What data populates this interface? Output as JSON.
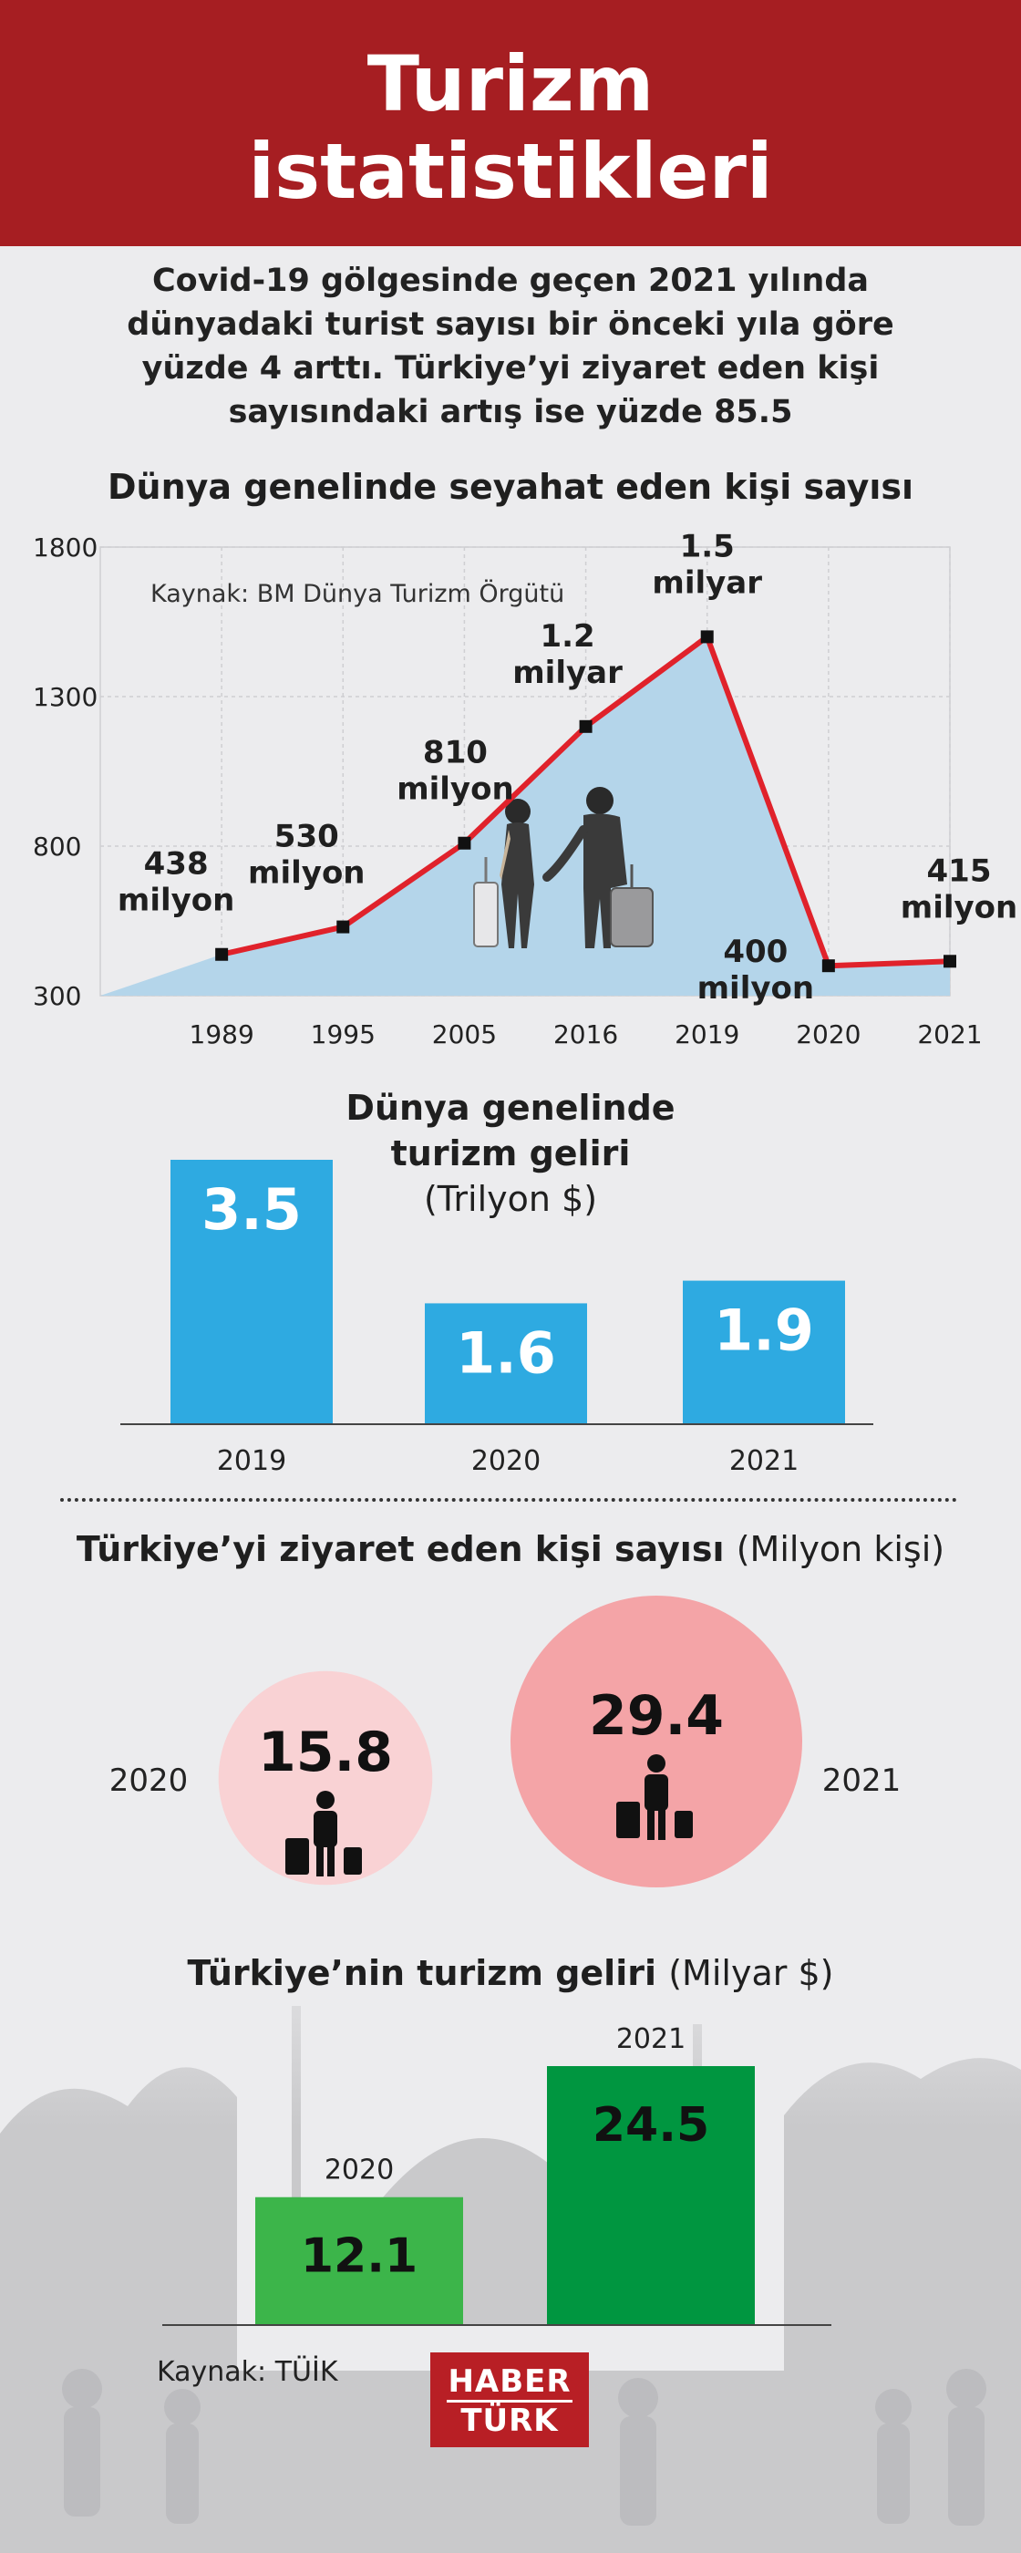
{
  "header": {
    "title_line1": "Turizm",
    "title_line2": "istatistikleri"
  },
  "intro": {
    "lines": [
      "Covid-19 gölgesinde geçen 2021 yılında",
      "dünyadaki turist sayısı bir önceki yıla göre",
      "yüzde 4 arttı. Türkiye’yi ziyaret eden kişi",
      "sayısındaki artış ise yüzde 85.5"
    ]
  },
  "colors": {
    "header_red": "#a61e22",
    "line_red": "#e0222b",
    "area_blue": "#b4d5ea",
    "bar_blue": "#2eaae1",
    "circle_light": "#f9d2d4",
    "circle_dark": "#f4a4a7",
    "bar_green_light": "#3cb54a",
    "bar_green_dark": "#009640",
    "logo_red": "#b81f25"
  },
  "chart_data": [
    {
      "type": "area",
      "title": "Dünya genelinde seyahat eden kişi sayısı",
      "source": "Kaynak: BM Dünya Turizm Örgütü",
      "x": [
        "1989",
        "1995",
        "2005",
        "2016",
        "2019",
        "2020",
        "2021"
      ],
      "values": [
        438,
        530,
        810,
        1200,
        1500,
        400,
        415
      ],
      "labels": [
        [
          "438",
          "milyon"
        ],
        [
          "530",
          "milyon"
        ],
        [
          "810",
          "milyon"
        ],
        [
          "1.2",
          "milyar"
        ],
        [
          "1.5",
          "milyar"
        ],
        [
          "400",
          "milyon"
        ],
        [
          "415",
          "milyon"
        ]
      ],
      "ylim": [
        300,
        1800
      ],
      "yticks": [
        "1800",
        "1300",
        "800",
        "300"
      ],
      "grid": true,
      "icons": [
        "travelers-with-luggage-icon"
      ]
    },
    {
      "type": "bar",
      "title_lines": [
        "Dünya genelinde",
        "turizm geliri"
      ],
      "unit": "(Trilyon $)",
      "categories": [
        "2019",
        "2020",
        "2021"
      ],
      "values": [
        3.5,
        1.6,
        1.9
      ],
      "value_labels": [
        "3.5",
        "1.6",
        "1.9"
      ]
    },
    {
      "type": "bubble",
      "title": "Türkiye’yi ziyaret eden kişi sayısı",
      "unit": "(Milyon kişi)",
      "categories": [
        "2020",
        "2021"
      ],
      "values": [
        15.8,
        29.4
      ],
      "value_labels": [
        "15.8",
        "29.4"
      ],
      "icons": [
        "traveler-with-suitcase-icon"
      ]
    },
    {
      "type": "bar",
      "title": "Türkiye’nin turizm geliri",
      "unit": "(Milyar $)",
      "categories": [
        "2020",
        "2021"
      ],
      "values": [
        12.1,
        24.5
      ],
      "value_labels": [
        "12.1",
        "24.5"
      ]
    }
  ],
  "footer": {
    "source": "Kaynak: TÜİK",
    "logo_line1": "HABER",
    "logo_line2": "TÜRK"
  }
}
